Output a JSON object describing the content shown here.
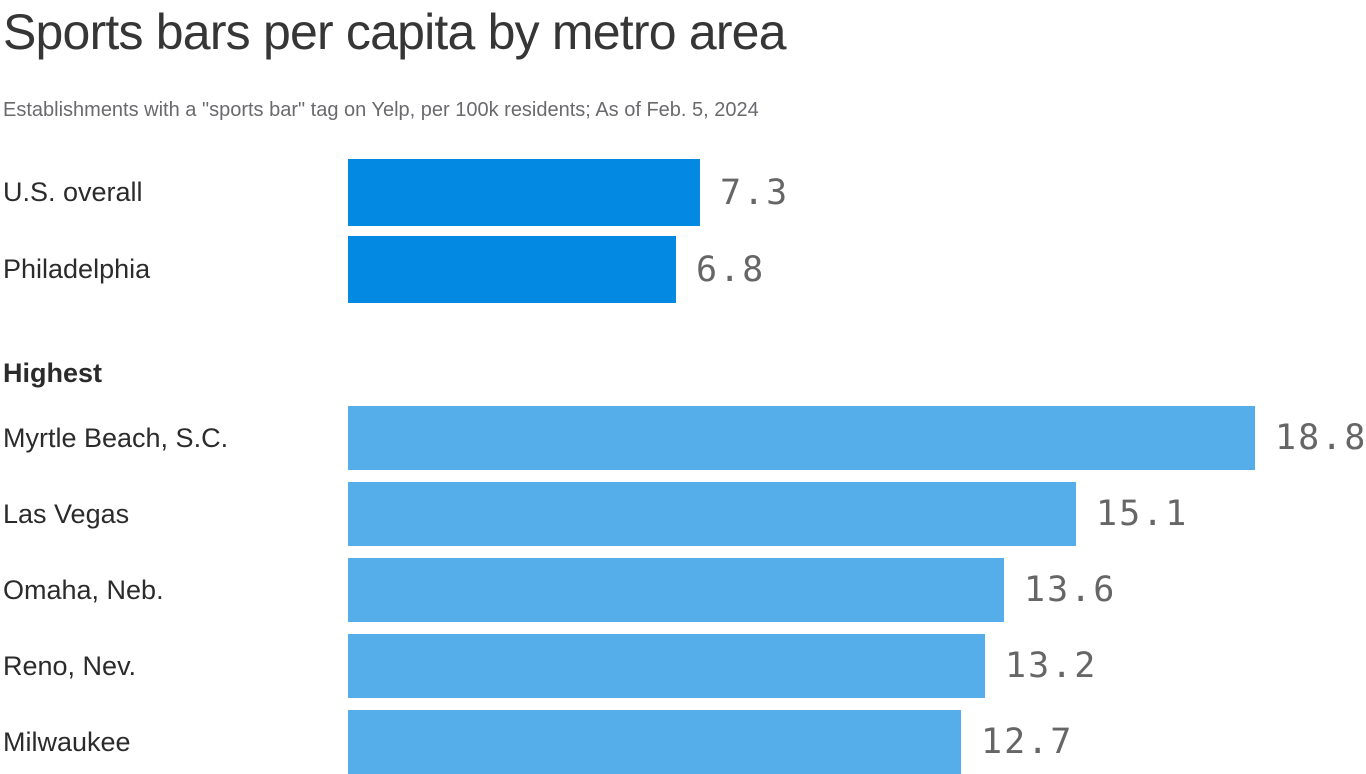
{
  "header": {
    "title": "Sports bars per capita by metro area",
    "subtitle": "Establishments with a \"sports bar\" tag on Yelp, per 100k residents; As of Feb. 5, 2024"
  },
  "chart_data": {
    "type": "bar",
    "orientation": "horizontal",
    "title": "Sports bars per capita by metro area",
    "subtitle": "Establishments with a \"sports bar\" tag on Yelp, per 100k residents; As of Feb. 5, 2024",
    "xlim": [
      0,
      18.8
    ],
    "value_label_color": "#666666",
    "groups": [
      {
        "header": "",
        "bar_color": "#0489e2",
        "items": [
          {
            "label": "U.S. overall",
            "value": 7.3
          },
          {
            "label": "Philadelphia",
            "value": 6.8
          }
        ]
      },
      {
        "header": "Highest",
        "bar_color": "#55aeea",
        "items": [
          {
            "label": "Myrtle Beach, S.C.",
            "value": 18.8
          },
          {
            "label": "Las Vegas",
            "value": 15.1
          },
          {
            "label": "Omaha, Neb.",
            "value": 13.6
          },
          {
            "label": "Reno, Nev.",
            "value": 13.2
          },
          {
            "label": "Milwaukee",
            "value": 12.7
          }
        ]
      }
    ]
  }
}
